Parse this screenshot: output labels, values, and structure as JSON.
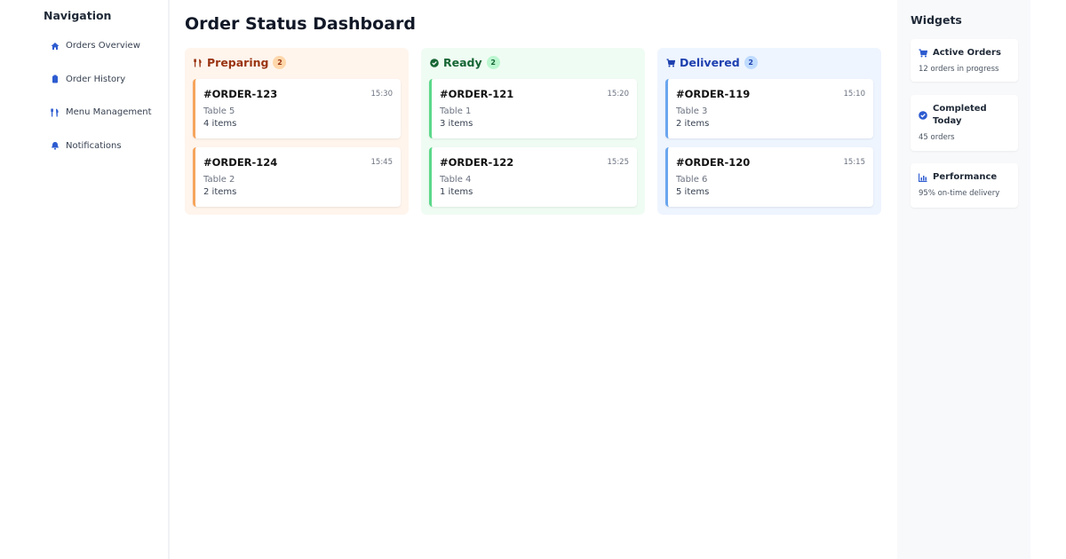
{
  "sidebar": {
    "title": "Navigation",
    "items": [
      "Orders Overview",
      "Order History",
      "Menu Management",
      "Notifications"
    ]
  },
  "main": {
    "title": "Order Status Dashboard",
    "columns": [
      {
        "title": "Preparing",
        "count": 2,
        "orders": [
          {
            "id": "#ORDER-123",
            "time": "15:30",
            "table": "Table 5",
            "items": "4 items"
          },
          {
            "id": "#ORDER-124",
            "time": "15:45",
            "table": "Table 2",
            "items": "2 items"
          }
        ]
      },
      {
        "title": "Ready",
        "count": 2,
        "orders": [
          {
            "id": "#ORDER-121",
            "time": "15:20",
            "table": "Table 1",
            "items": "3 items"
          },
          {
            "id": "#ORDER-122",
            "time": "15:25",
            "table": "Table 4",
            "items": "1 items"
          }
        ]
      },
      {
        "title": "Delivered",
        "count": 2,
        "orders": [
          {
            "id": "#ORDER-119",
            "time": "15:10",
            "table": "Table 3",
            "items": "2 items"
          },
          {
            "id": "#ORDER-120",
            "time": "15:15",
            "table": "Table 6",
            "items": "5 items"
          }
        ]
      }
    ]
  },
  "widgets": {
    "title": "Widgets",
    "items": [
      {
        "title": "Active Orders",
        "text": "12 orders in progress"
      },
      {
        "title": "Completed Today",
        "text": "45 orders"
      },
      {
        "title": "Performance",
        "text": "95% on-time delivery"
      }
    ]
  }
}
